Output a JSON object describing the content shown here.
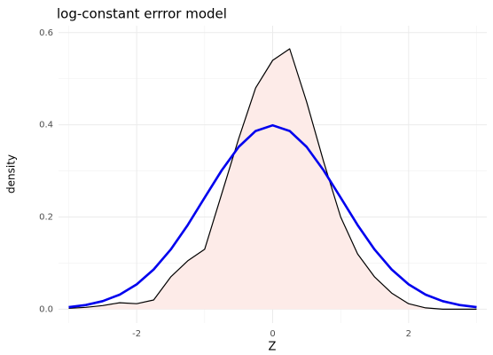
{
  "chart_data": {
    "type": "density",
    "title": "log-constant errror model",
    "xlabel": "Z",
    "ylabel": "density",
    "x": [
      -3,
      -2.75,
      -2.5,
      -2.25,
      -2,
      -1.75,
      -1.5,
      -1.25,
      -1,
      -0.75,
      -0.5,
      -0.25,
      0,
      0.25,
      0.5,
      0.75,
      1,
      1.25,
      1.5,
      1.75,
      2,
      2.25,
      2.5,
      2.75,
      3
    ],
    "series": [
      {
        "color": "#000000",
        "fill": "#fdebe8",
        "values": [
          0.002,
          0.004,
          0.008,
          0.014,
          0.012,
          0.02,
          0.07,
          0.105,
          0.13,
          0.25,
          0.37,
          0.48,
          0.54,
          0.565,
          0.45,
          0.32,
          0.2,
          0.12,
          0.07,
          0.035,
          0.012,
          0.003,
          0.0,
          0.0,
          0.0
        ]
      },
      {
        "color": "#0000ee",
        "values": [
          0.0044,
          0.0091,
          0.0175,
          0.0317,
          0.054,
          0.0863,
          0.1295,
          0.1826,
          0.242,
          0.3011,
          0.3521,
          0.3867,
          0.3989,
          0.3867,
          0.3521,
          0.3011,
          0.242,
          0.1826,
          0.1295,
          0.0863,
          0.054,
          0.0317,
          0.0175,
          0.0091,
          0.0044
        ]
      }
    ],
    "xlim": [
      -3.15,
      3.15
    ],
    "ylim": [
      -0.03,
      0.615
    ],
    "xticks": [
      -2,
      0,
      2
    ],
    "yticks": [
      {
        "value": 0,
        "label": "0.0"
      },
      0.2,
      0.4,
      0.6
    ],
    "xminor": [
      -3,
      -1,
      1,
      3
    ],
    "yminor": [
      0.1,
      0.3,
      0.5
    ],
    "grid": true
  }
}
